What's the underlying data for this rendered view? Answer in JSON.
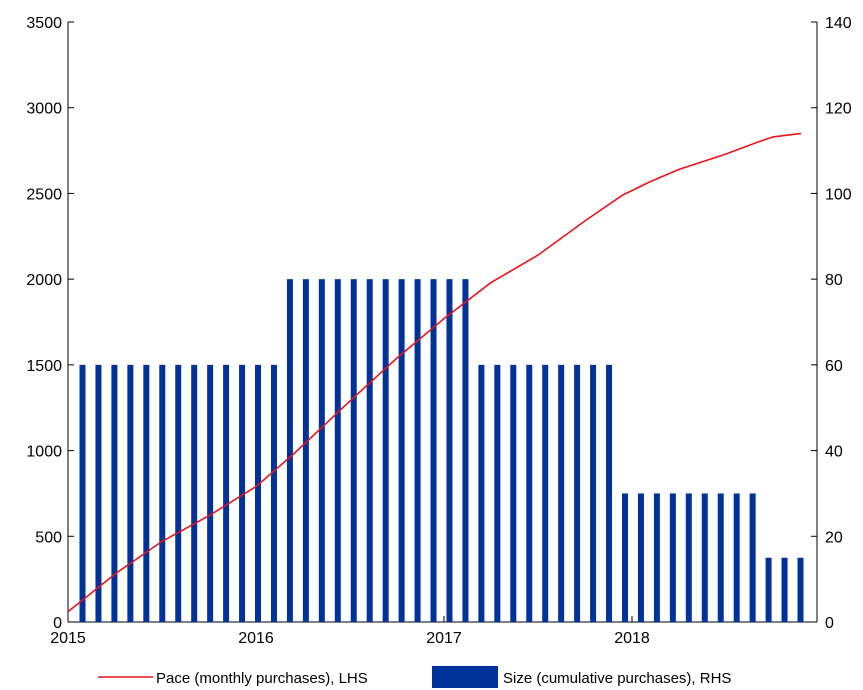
{
  "chart_data": {
    "type": "bar",
    "title": "",
    "x_ticks": [
      "2015",
      "2016",
      "2017",
      "2018"
    ],
    "y_left": {
      "min": 0,
      "max": 3500,
      "ticks": [
        0,
        500,
        1000,
        1500,
        2000,
        2500,
        3000,
        3500
      ]
    },
    "y_right": {
      "min": 0,
      "max": 140,
      "ticks": [
        0,
        20,
        40,
        60,
        80,
        100,
        120,
        140
      ]
    },
    "series": [
      {
        "name": "Pace (monthly purchases), LHS",
        "type": "line",
        "axis": "left",
        "color": "#e8141a",
        "x": [
          2015.0,
          2015.25,
          2015.5,
          2015.75,
          2016.0,
          2016.2,
          2016.5,
          2016.75,
          2017.0,
          2017.25,
          2017.5,
          2017.75,
          2017.95,
          2018.1,
          2018.25,
          2018.5,
          2018.67,
          2018.75,
          2018.9
        ],
        "y": [
          60,
          280,
          470,
          620,
          790,
          980,
          1290,
          1540,
          1770,
          1980,
          2140,
          2340,
          2490,
          2570,
          2640,
          2730,
          2800,
          2830,
          2850
        ]
      },
      {
        "name": "Size (cumulative purchases), RHS",
        "type": "bar",
        "axis": "right",
        "color": "#003399",
        "months": [
          "2015-03",
          "2015-04",
          "2015-05",
          "2015-06",
          "2015-07",
          "2015-08",
          "2015-09",
          "2015-10",
          "2015-11",
          "2015-12",
          "2016-01",
          "2016-02",
          "2016-03",
          "2016-04",
          "2016-05",
          "2016-06",
          "2016-07",
          "2016-08",
          "2016-09",
          "2016-10",
          "2016-11",
          "2016-12",
          "2017-01",
          "2017-02",
          "2017-03",
          "2017-04",
          "2017-05",
          "2017-06",
          "2017-07",
          "2017-08",
          "2017-09",
          "2017-10",
          "2017-11",
          "2017-12",
          "2018-01",
          "2018-02",
          "2018-03",
          "2018-04",
          "2018-05",
          "2018-06",
          "2018-07",
          "2018-08",
          "2018-09",
          "2018-10",
          "2018-11",
          "2018-12"
        ],
        "values": [
          60,
          60,
          60,
          60,
          60,
          60,
          60,
          60,
          60,
          60,
          60,
          60,
          60,
          80,
          80,
          80,
          80,
          80,
          80,
          80,
          80,
          80,
          80,
          80,
          80,
          60,
          60,
          60,
          60,
          60,
          60,
          60,
          60,
          60,
          30,
          30,
          30,
          30,
          30,
          30,
          30,
          30,
          30,
          15,
          15,
          15
        ]
      }
    ],
    "legend": {
      "position": "bottom"
    }
  }
}
